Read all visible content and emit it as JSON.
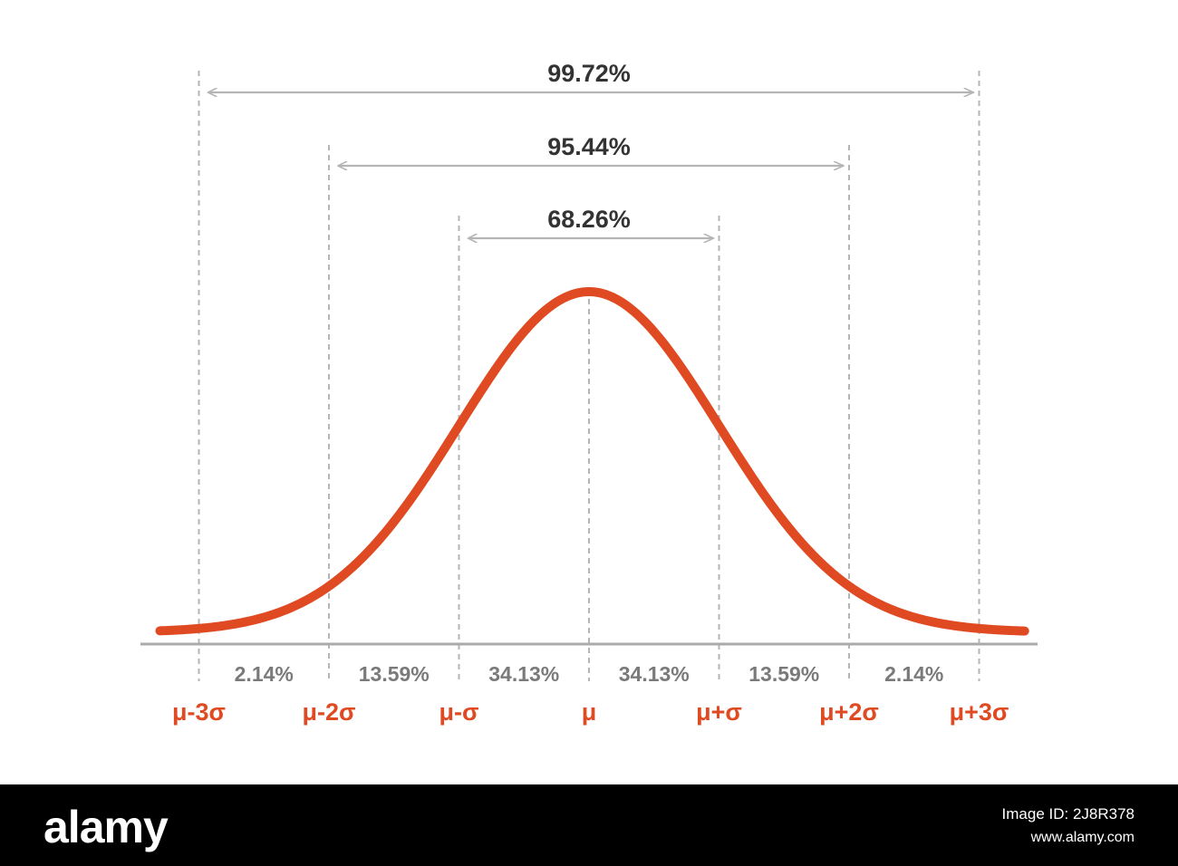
{
  "chart_data": {
    "type": "line",
    "title": "",
    "xlabel": "",
    "ylabel": "",
    "x_ticks": [
      "μ-3σ",
      "μ-2σ",
      "μ-σ",
      "μ",
      "μ+σ",
      "μ+2σ",
      "μ+3σ"
    ],
    "x_range_sigma": [
      -3.3,
      3.35
    ],
    "series": [
      {
        "curve": "normal-density",
        "mean": 0,
        "sd": 1
      }
    ],
    "segment_percents": [
      "2.14%",
      "13.59%",
      "34.13%",
      "34.13%",
      "13.59%",
      "2.14%"
    ],
    "intervals": [
      {
        "label": "68.26%",
        "from_sigma": -1,
        "to_sigma": 1
      },
      {
        "label": "95.44%",
        "from_sigma": -2,
        "to_sigma": 2
      },
      {
        "label": "99.72%",
        "from_sigma": -3,
        "to_sigma": 3
      }
    ],
    "colors": {
      "curve": "#e04a22",
      "tick_label": "#e04a22",
      "segment_label": "#7a7a7a",
      "interval_label": "#333333",
      "guides": "#b5b5b5",
      "baseline": "#aaaaaa"
    }
  },
  "watermark": {
    "brand": "alamy",
    "lines": [
      "Image ID: 2J8R378",
      "www.alamy.com"
    ]
  }
}
